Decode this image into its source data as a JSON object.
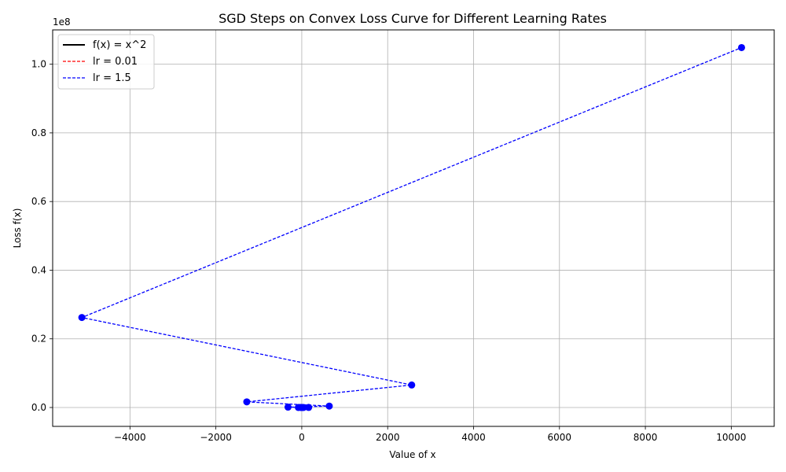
{
  "chart_data": {
    "type": "line",
    "title": "SGD Steps on Convex Loss Curve for Different Learning Rates",
    "xlabel": "Value of x",
    "ylabel": "Loss f(x)",
    "y_offset_label": "1e8",
    "y_scale_factor": 100000000,
    "xlim": [
      -5800,
      11000
    ],
    "ylim": [
      -5500000,
      110000000
    ],
    "x_ticks": [
      -4000,
      -2000,
      0,
      2000,
      4000,
      6000,
      8000,
      10000
    ],
    "x_tick_labels": [
      "−4000",
      "−2000",
      "0",
      "2000",
      "4000",
      "6000",
      "8000",
      "10000"
    ],
    "y_ticks": [
      0,
      20000000,
      40000000,
      60000000,
      80000000,
      100000000
    ],
    "y_tick_labels": [
      "0.0",
      "0.2",
      "0.4",
      "0.6",
      "0.8",
      "1.0"
    ],
    "grid": true,
    "legend_position": "top-left",
    "series": [
      {
        "name": "f(x) = x^2",
        "color": "#000000",
        "style": "solid",
        "markers": false,
        "x": [
          -10,
          -8,
          -6,
          -4,
          -2,
          0,
          2,
          4,
          6,
          8,
          10
        ],
        "y": [
          100,
          64,
          36,
          16,
          4,
          0,
          4,
          16,
          36,
          64,
          100
        ]
      },
      {
        "name": "lr = 0.01",
        "color": "#ff0000",
        "style": "dashed",
        "markers": false,
        "x": [
          10,
          9.8,
          9.6,
          9.41,
          9.22,
          9.04,
          8.86,
          8.68,
          8.51,
          8.34
        ],
        "y": [
          100,
          96,
          92.2,
          88.5,
          85,
          81.7,
          78.4,
          75.3,
          72.3,
          69.5
        ]
      },
      {
        "name": "lr = 1.5",
        "color": "#0000ff",
        "style": "dashed",
        "markers": true,
        "x": [
          10,
          -20,
          40,
          -80,
          160,
          -320,
          640,
          -1280,
          2560,
          -5120,
          10240
        ],
        "y": [
          100,
          400,
          1600,
          6400,
          25600,
          102400,
          409600,
          1638400,
          6553600,
          26214400,
          104857600
        ]
      }
    ]
  }
}
